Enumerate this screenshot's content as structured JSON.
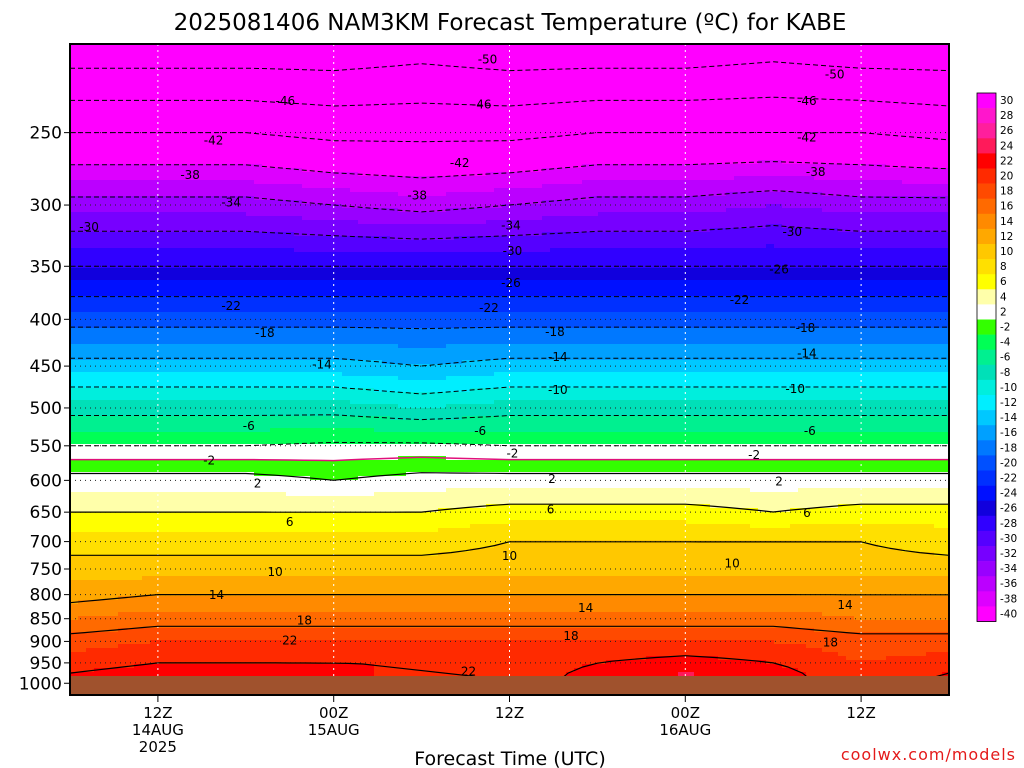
{
  "chart_data": {
    "type": "heatmap",
    "title": "2025081406 NAM3KM Forecast Temperature (ºC) for KABE",
    "xlabel": "Forecast Time (UTC)",
    "ylabel": "",
    "y_axis": {
      "unit": "hPa",
      "scale": "log",
      "ticks": [
        250,
        300,
        350,
        400,
        450,
        500,
        550,
        600,
        650,
        700,
        750,
        800,
        850,
        900,
        950,
        1000
      ],
      "range": [
        200,
        1030
      ]
    },
    "x_axis": {
      "unit": "hours after 2025-08-14 06Z",
      "range": [
        0,
        60
      ],
      "ticks": [
        {
          "hour": 6,
          "line1": "12Z",
          "line2": "14AUG",
          "line3": "2025"
        },
        {
          "hour": 18,
          "line1": "00Z",
          "line2": "15AUG",
          "line3": ""
        },
        {
          "hour": 30,
          "line1": "12Z",
          "line2": "",
          "line3": ""
        },
        {
          "hour": 42,
          "line1": "00Z",
          "line2": "16AUG",
          "line3": ""
        },
        {
          "hour": 54,
          "line1": "12Z",
          "line2": "",
          "line3": ""
        }
      ]
    },
    "profile_hours": [
      0,
      6,
      12,
      18,
      24,
      30,
      36,
      42,
      48,
      54,
      60
    ],
    "temperature_profiles": [
      {
        "pressure": 200,
        "values": [
          -53,
          -53,
          -53,
          -53,
          -52,
          -53,
          -53,
          -53,
          -52,
          -53,
          -53
        ]
      },
      {
        "pressure": 250,
        "values": [
          -42,
          -42,
          -42,
          -43,
          -43,
          -43,
          -42,
          -42,
          -42,
          -42,
          -43
        ]
      },
      {
        "pressure": 300,
        "values": [
          -33,
          -33,
          -33,
          -34,
          -35,
          -34,
          -33,
          -33,
          -32,
          -33,
          -33
        ]
      },
      {
        "pressure": 350,
        "values": [
          -26,
          -26,
          -26,
          -26,
          -26,
          -26,
          -26,
          -26,
          -26,
          -26,
          -26
        ]
      },
      {
        "pressure": 400,
        "values": [
          -19,
          -19,
          -19,
          -19,
          -19,
          -19,
          -19,
          -19,
          -19,
          -19,
          -19
        ]
      },
      {
        "pressure": 450,
        "values": [
          -13,
          -13,
          -13,
          -13,
          -14,
          -13,
          -13,
          -13,
          -13,
          -13,
          -13
        ]
      },
      {
        "pressure": 500,
        "values": [
          -7,
          -7,
          -7,
          -7,
          -8,
          -7,
          -7,
          -7,
          -7,
          -7,
          -7
        ]
      },
      {
        "pressure": 550,
        "values": [
          -2,
          -2,
          -2,
          -1.5,
          -1.5,
          -2,
          -2,
          -2,
          -2,
          -2,
          -2
        ]
      },
      {
        "pressure": 600,
        "values": [
          3,
          3,
          3,
          2,
          3,
          3,
          3,
          3,
          3,
          3,
          3
        ]
      },
      {
        "pressure": 650,
        "values": [
          6,
          6,
          6,
          6,
          6,
          7,
          7,
          7,
          6,
          7,
          7
        ]
      },
      {
        "pressure": 700,
        "values": [
          9,
          9,
          9,
          9,
          9,
          10,
          10,
          10,
          10,
          10,
          9
        ]
      },
      {
        "pressure": 750,
        "values": [
          11,
          11,
          11,
          11,
          11,
          11,
          11,
          11,
          11,
          11,
          11
        ]
      },
      {
        "pressure": 800,
        "values": [
          13,
          14,
          14,
          14,
          14,
          14,
          14,
          14,
          14,
          14,
          14
        ]
      },
      {
        "pressure": 850,
        "values": [
          16,
          17,
          17,
          17,
          17,
          17,
          17,
          17,
          17,
          16,
          16
        ]
      },
      {
        "pressure": 900,
        "values": [
          19,
          20,
          20,
          20,
          20,
          20,
          20,
          20,
          20,
          19,
          19
        ]
      },
      {
        "pressure": 950,
        "values": [
          21,
          22,
          22,
          22,
          22,
          21,
          22,
          23,
          22,
          20,
          21
        ]
      },
      {
        "pressure": 1000,
        "values": [
          23,
          24,
          24,
          23,
          21,
          21,
          23,
          25,
          24,
          20,
          23
        ]
      }
    ],
    "contours": {
      "dashed_levels": [
        -50,
        -46,
        -42,
        -38,
        -34,
        -30,
        -26,
        -22,
        -18,
        -14,
        -10,
        -6,
        -2
      ],
      "solid_levels": [
        2,
        6,
        10,
        14,
        18,
        22
      ],
      "freezing_level": 0,
      "labels": [
        {
          "text": "-50",
          "hour": 28.5,
          "pressure": 208
        },
        {
          "text": "-50",
          "hour": 52.2,
          "pressure": 216
        },
        {
          "text": "-46",
          "hour": 14.7,
          "pressure": 231
        },
        {
          "text": "-46",
          "hour": 28.1,
          "pressure": 233
        },
        {
          "text": "-46",
          "hour": 50.3,
          "pressure": 231
        },
        {
          "text": "-42",
          "hour": 9.8,
          "pressure": 255
        },
        {
          "text": "-42",
          "hour": 26.6,
          "pressure": 270
        },
        {
          "text": "-42",
          "hour": 50.3,
          "pressure": 253
        },
        {
          "text": "-38",
          "hour": 8.2,
          "pressure": 278
        },
        {
          "text": "-38",
          "hour": 23.7,
          "pressure": 293
        },
        {
          "text": "-38",
          "hour": 50.9,
          "pressure": 276
        },
        {
          "text": "-34",
          "hour": 11.0,
          "pressure": 298
        },
        {
          "text": "-34",
          "hour": 30.1,
          "pressure": 316
        },
        {
          "text": "-30",
          "hour": 1.3,
          "pressure": 317
        },
        {
          "text": "-30",
          "hour": 30.2,
          "pressure": 337
        },
        {
          "text": "-30",
          "hour": 49.3,
          "pressure": 321
        },
        {
          "text": "-26",
          "hour": 30.1,
          "pressure": 365
        },
        {
          "text": "-26",
          "hour": 48.4,
          "pressure": 353
        },
        {
          "text": "-22",
          "hour": 11.0,
          "pressure": 387
        },
        {
          "text": "-22",
          "hour": 28.6,
          "pressure": 389
        },
        {
          "text": "-22",
          "hour": 45.7,
          "pressure": 381
        },
        {
          "text": "-18",
          "hour": 13.3,
          "pressure": 414
        },
        {
          "text": "-18",
          "hour": 33.1,
          "pressure": 413
        },
        {
          "text": "-18",
          "hour": 50.2,
          "pressure": 409
        },
        {
          "text": "-14",
          "hour": 17.2,
          "pressure": 448
        },
        {
          "text": "-14",
          "hour": 33.3,
          "pressure": 440
        },
        {
          "text": "-14",
          "hour": 50.3,
          "pressure": 436
        },
        {
          "text": "-10",
          "hour": 33.3,
          "pressure": 478
        },
        {
          "text": "-10",
          "hour": 49.5,
          "pressure": 477
        },
        {
          "text": "-6",
          "hour": 12.2,
          "pressure": 523
        },
        {
          "text": "-6",
          "hour": 28.0,
          "pressure": 530
        },
        {
          "text": "-6",
          "hour": 50.5,
          "pressure": 530
        },
        {
          "text": "-2",
          "hour": 9.5,
          "pressure": 571
        },
        {
          "text": "-2",
          "hour": 30.2,
          "pressure": 561
        },
        {
          "text": "-2",
          "hour": 46.7,
          "pressure": 563
        },
        {
          "text": "2",
          "hour": 12.8,
          "pressure": 605
        },
        {
          "text": "2",
          "hour": 32.9,
          "pressure": 598
        },
        {
          "text": "2",
          "hour": 48.4,
          "pressure": 602
        },
        {
          "text": "6",
          "hour": 15.0,
          "pressure": 666
        },
        {
          "text": "6",
          "hour": 32.8,
          "pressure": 646
        },
        {
          "text": "6",
          "hour": 50.3,
          "pressure": 651
        },
        {
          "text": "10",
          "hour": 14.0,
          "pressure": 756
        },
        {
          "text": "10",
          "hour": 30.0,
          "pressure": 726
        },
        {
          "text": "10",
          "hour": 45.2,
          "pressure": 740
        },
        {
          "text": "14",
          "hour": 10.0,
          "pressure": 801
        },
        {
          "text": "14",
          "hour": 35.2,
          "pressure": 827
        },
        {
          "text": "14",
          "hour": 52.9,
          "pressure": 821
        },
        {
          "text": "18",
          "hour": 16.0,
          "pressure": 854
        },
        {
          "text": "18",
          "hour": 34.2,
          "pressure": 888
        },
        {
          "text": "18",
          "hour": 51.9,
          "pressure": 903
        },
        {
          "text": "22",
          "hour": 15.0,
          "pressure": 898
        },
        {
          "text": "22",
          "hour": 27.2,
          "pressure": 971
        }
      ]
    },
    "colorbar": {
      "labels": [
        "30",
        "28",
        "26",
        "24",
        "22",
        "20",
        "18",
        "16",
        "14",
        "12",
        "10",
        "8",
        "6",
        "4",
        "2",
        "-2",
        "-4",
        "-6",
        "-8",
        "-10",
        "-12",
        "-14",
        "-16",
        "-18",
        "-20",
        "-22",
        "-24",
        "-26",
        "-28",
        "-30",
        "-32",
        "-34",
        "-36",
        "-38",
        "-40"
      ],
      "colors": [
        "#ff00ff",
        "#ff16cc",
        "#ff1f9c",
        "#ff1a5a",
        "#ff0000",
        "#ff2a00",
        "#ff4a00",
        "#ff6a00",
        "#ff8a00",
        "#ffa800",
        "#ffc800",
        "#ffe000",
        "#ffff00",
        "#ffffaa",
        "#ffffff",
        "#33ff00",
        "#00ff55",
        "#00f090",
        "#00e0b8",
        "#00eedd",
        "#00eeff",
        "#00c8ff",
        "#00a0ff",
        "#0078ff",
        "#0050ff",
        "#0030ff",
        "#0010ff",
        "#1100dd",
        "#3000ff",
        "#5500ff",
        "#7700ff",
        "#9900ff",
        "#bb00ff",
        "#dd00ff",
        "#ff00ff"
      ]
    },
    "freezing_line_color": "#e0107a",
    "ground_color": "#a0522d"
  },
  "credit": "coolwx.com/models"
}
